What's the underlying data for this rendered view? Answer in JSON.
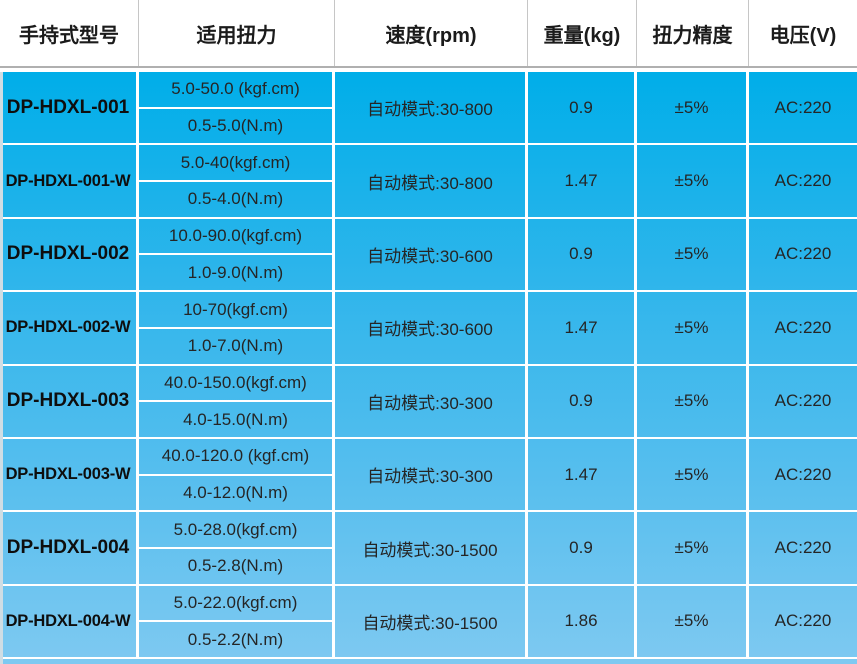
{
  "table": {
    "columns": [
      {
        "label": "手持式型号"
      },
      {
        "label": "适用扭力"
      },
      {
        "label": "速度(rpm)"
      },
      {
        "label": "重量(kg)"
      },
      {
        "label": "扭力精度"
      },
      {
        "label": "电压(V)"
      }
    ],
    "rows": [
      {
        "model": "DP-HDXL-001",
        "torque_kgf": "5.0-50.0 (kgf.cm)",
        "torque_nm": "0.5-5.0(N.m)",
        "speed": "自动模式:30-800",
        "weight": "0.9",
        "accuracy": "±5%",
        "voltage": "AC:220"
      },
      {
        "model": "DP-HDXL-001-W",
        "torque_kgf": "5.0-40(kgf.cm)",
        "torque_nm": "0.5-4.0(N.m)",
        "speed": "自动模式:30-800",
        "weight": "1.47",
        "accuracy": "±5%",
        "voltage": "AC:220"
      },
      {
        "model": "DP-HDXL-002",
        "torque_kgf": "10.0-90.0(kgf.cm)",
        "torque_nm": "1.0-9.0(N.m)",
        "speed": "自动模式:30-600",
        "weight": "0.9",
        "accuracy": "±5%",
        "voltage": "AC:220"
      },
      {
        "model": "DP-HDXL-002-W",
        "torque_kgf": "10-70(kgf.cm)",
        "torque_nm": "1.0-7.0(N.m)",
        "speed": "自动模式:30-600",
        "weight": "1.47",
        "accuracy": "±5%",
        "voltage": "AC:220"
      },
      {
        "model": "DP-HDXL-003",
        "torque_kgf": "40.0-150.0(kgf.cm)",
        "torque_nm": "4.0-15.0(N.m)",
        "speed": "自动模式:30-300",
        "weight": "0.9",
        "accuracy": "±5%",
        "voltage": "AC:220"
      },
      {
        "model": "DP-HDXL-003-W",
        "torque_kgf": "40.0-120.0 (kgf.cm)",
        "torque_nm": "4.0-12.0(N.m)",
        "speed": "自动模式:30-300",
        "weight": "1.47",
        "accuracy": "±5%",
        "voltage": "AC:220"
      },
      {
        "model": "DP-HDXL-004",
        "torque_kgf": "5.0-28.0(kgf.cm)",
        "torque_nm": "0.5-2.8(N.m)",
        "speed": "自动模式:30-1500",
        "weight": "0.9",
        "accuracy": "±5%",
        "voltage": "AC:220"
      },
      {
        "model": "DP-HDXL-004-W",
        "torque_kgf": "5.0-22.0(kgf.cm)",
        "torque_nm": "0.5-2.2(N.m)",
        "speed": "自动模式:30-1500",
        "weight": "1.86",
        "accuracy": "±5%",
        "voltage": "AC:220"
      }
    ]
  },
  "colors": {
    "body_gradient_top": "#00aee9",
    "body_gradient_bottom": "#7ec9f1",
    "grid_line": "#ffffff",
    "header_background": "#ffffff",
    "header_separator": "#c6c6c6",
    "header_bottom_border": "#b0b0b0",
    "header_text": "#1b1b1b",
    "body_text": "#252525",
    "left_edge_strip": "#cfdde4"
  }
}
